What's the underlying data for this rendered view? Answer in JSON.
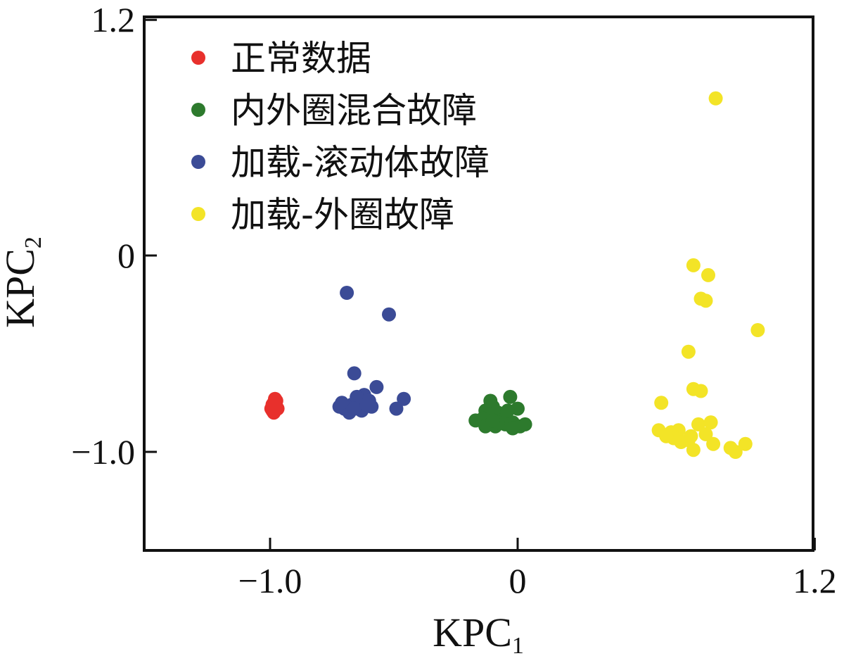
{
  "chart_data": {
    "type": "scatter",
    "title": "",
    "xlabel": {
      "base": "KPC",
      "sub": "1"
    },
    "ylabel": {
      "base": "KPC",
      "sub": "2"
    },
    "xlim": [
      -1.5,
      1.2
    ],
    "ylim": [
      -1.5,
      1.2
    ],
    "x_ticks": [
      {
        "value": -1.0,
        "label": "−1.0"
      },
      {
        "value": 0,
        "label": "0"
      },
      {
        "value": 1.2,
        "label": "1.2"
      }
    ],
    "y_ticks": [
      {
        "value": 1.2,
        "label": "1.2"
      },
      {
        "value": 0,
        "label": "0"
      },
      {
        "value": -1.0,
        "label": "−1.0"
      }
    ],
    "grid": false,
    "legend_position": "top-left",
    "series": [
      {
        "name": "正常数据",
        "color": "#e8302c",
        "points": [
          [
            -0.99,
            -0.76
          ],
          [
            -0.98,
            -0.73
          ],
          [
            -0.985,
            -0.75
          ],
          [
            -0.995,
            -0.78
          ],
          [
            -0.975,
            -0.74
          ],
          [
            -0.985,
            -0.8
          ],
          [
            -0.975,
            -0.77
          ],
          [
            -0.99,
            -0.79
          ],
          [
            -0.98,
            -0.76
          ],
          [
            -0.97,
            -0.78
          ]
        ]
      },
      {
        "name": "内外圈混合故障",
        "color": "#2d7a2d",
        "points": [
          [
            -0.03,
            -0.72
          ],
          [
            -0.1,
            -0.77
          ],
          [
            -0.08,
            -0.8
          ],
          [
            -0.09,
            -0.87
          ],
          [
            -0.17,
            -0.84
          ],
          [
            -0.12,
            -0.86
          ],
          [
            -0.05,
            -0.82
          ],
          [
            -0.07,
            -0.84
          ],
          [
            -0.13,
            -0.79
          ],
          [
            -0.14,
            -0.83
          ],
          [
            -0.02,
            -0.85
          ],
          [
            -0.05,
            -0.86
          ],
          [
            0.01,
            -0.87
          ],
          [
            -0.11,
            -0.74
          ],
          [
            0.0,
            -0.78
          ],
          [
            -0.04,
            -0.79
          ],
          [
            -0.08,
            -0.85
          ],
          [
            -0.13,
            -0.87
          ],
          [
            -0.02,
            -0.88
          ],
          [
            0.03,
            -0.86
          ],
          [
            -0.1,
            -0.84
          ]
        ]
      },
      {
        "name": "加载-滚动体故障",
        "color": "#3b4b96",
        "points": [
          [
            -0.69,
            -0.19
          ],
          [
            -0.52,
            -0.3
          ],
          [
            -0.66,
            -0.6
          ],
          [
            -0.57,
            -0.67
          ],
          [
            -0.46,
            -0.73
          ],
          [
            -0.49,
            -0.78
          ],
          [
            -0.62,
            -0.71
          ],
          [
            -0.64,
            -0.75
          ],
          [
            -0.67,
            -0.76
          ],
          [
            -0.7,
            -0.78
          ],
          [
            -0.72,
            -0.77
          ],
          [
            -0.65,
            -0.72
          ],
          [
            -0.6,
            -0.74
          ],
          [
            -0.59,
            -0.77
          ],
          [
            -0.68,
            -0.8
          ],
          [
            -0.71,
            -0.75
          ],
          [
            -0.63,
            -0.79
          ],
          [
            -0.66,
            -0.78
          ],
          [
            -0.61,
            -0.76
          ]
        ]
      },
      {
        "name": "加载-外圈故障",
        "color": "#f3e427",
        "points": [
          [
            0.8,
            0.8
          ],
          [
            0.71,
            -0.05
          ],
          [
            0.77,
            -0.1
          ],
          [
            0.74,
            -0.22
          ],
          [
            0.76,
            -0.23
          ],
          [
            0.97,
            -0.38
          ],
          [
            0.69,
            -0.49
          ],
          [
            0.71,
            -0.68
          ],
          [
            0.74,
            -0.69
          ],
          [
            0.58,
            -0.75
          ],
          [
            0.57,
            -0.89
          ],
          [
            0.65,
            -0.89
          ],
          [
            0.62,
            -0.9
          ],
          [
            0.63,
            -0.93
          ],
          [
            0.66,
            -0.95
          ],
          [
            0.7,
            -0.92
          ],
          [
            0.71,
            -0.99
          ],
          [
            0.73,
            -0.86
          ],
          [
            0.78,
            -0.85
          ],
          [
            0.76,
            -0.91
          ],
          [
            0.79,
            -0.96
          ],
          [
            0.86,
            -0.98
          ],
          [
            0.88,
            -1.0
          ],
          [
            0.92,
            -0.96
          ],
          [
            0.69,
            -0.94
          ],
          [
            0.6,
            -0.92
          ]
        ]
      }
    ]
  }
}
